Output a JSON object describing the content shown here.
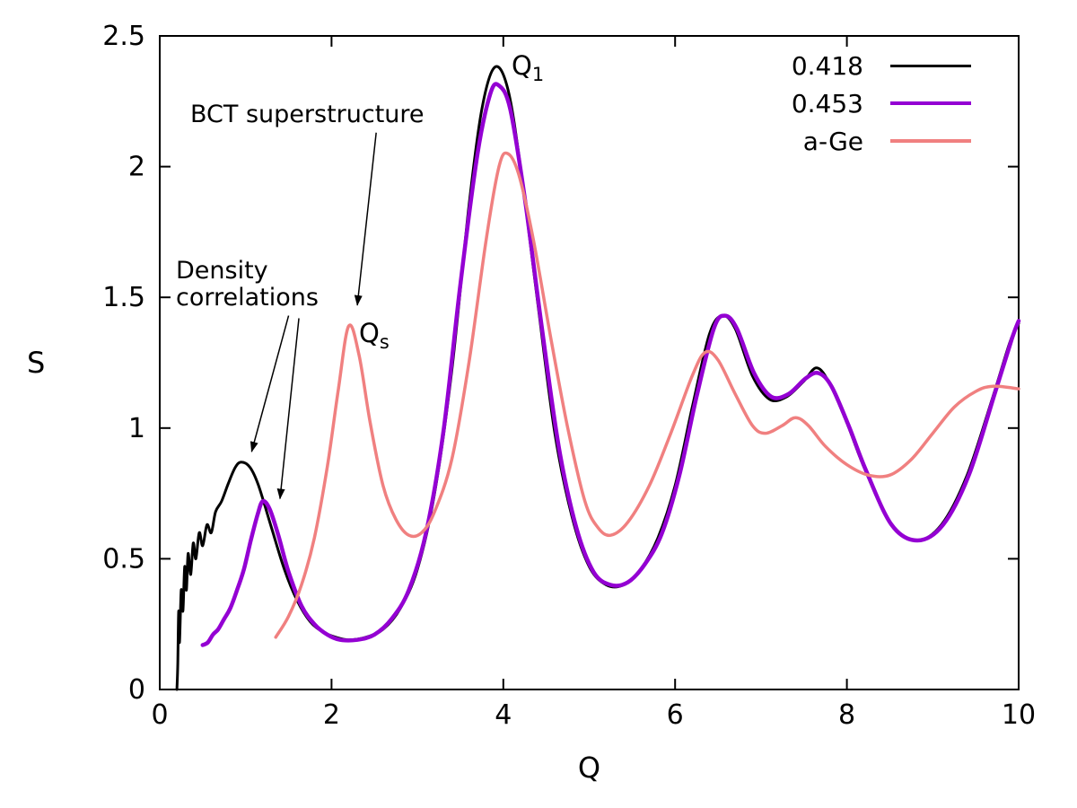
{
  "page": {
    "background": "#ffffff"
  },
  "chart_data": {
    "type": "line",
    "title": "",
    "xlabel": "Q",
    "ylabel": "S",
    "xlim": [
      0,
      10
    ],
    "ylim": [
      0,
      2.5
    ],
    "x_ticks": [
      0,
      2,
      4,
      6,
      8,
      10
    ],
    "x_tick_labels": [
      "0",
      "2",
      "4",
      "6",
      "8",
      "10"
    ],
    "y_ticks": [
      0,
      0.5,
      1,
      1.5,
      2,
      2.5
    ],
    "y_tick_labels": [
      "0",
      "0.5",
      "1",
      "1.5",
      "2",
      "2.5"
    ],
    "grid": false,
    "legend_position": "top-right-inside",
    "axis_color": "#000000",
    "series": [
      {
        "name": "0.418",
        "color": "#000000",
        "width": 3,
        "points": [
          [
            0.2,
            0.0
          ],
          [
            0.21,
            0.1
          ],
          [
            0.22,
            0.3
          ],
          [
            0.23,
            0.18
          ],
          [
            0.25,
            0.38
          ],
          [
            0.27,
            0.3
          ],
          [
            0.29,
            0.47
          ],
          [
            0.31,
            0.38
          ],
          [
            0.33,
            0.52
          ],
          [
            0.36,
            0.44
          ],
          [
            0.39,
            0.56
          ],
          [
            0.42,
            0.5
          ],
          [
            0.46,
            0.6
          ],
          [
            0.5,
            0.55
          ],
          [
            0.55,
            0.63
          ],
          [
            0.6,
            0.6
          ],
          [
            0.65,
            0.68
          ],
          [
            0.72,
            0.72
          ],
          [
            0.8,
            0.79
          ],
          [
            0.88,
            0.85
          ],
          [
            0.95,
            0.87
          ],
          [
            1.05,
            0.85
          ],
          [
            1.15,
            0.78
          ],
          [
            1.3,
            0.62
          ],
          [
            1.45,
            0.46
          ],
          [
            1.6,
            0.34
          ],
          [
            1.75,
            0.26
          ],
          [
            1.9,
            0.22
          ],
          [
            2.05,
            0.2
          ],
          [
            2.2,
            0.19
          ],
          [
            2.4,
            0.2
          ],
          [
            2.6,
            0.23
          ],
          [
            2.8,
            0.31
          ],
          [
            3.0,
            0.46
          ],
          [
            3.2,
            0.75
          ],
          [
            3.4,
            1.22
          ],
          [
            3.6,
            1.85
          ],
          [
            3.75,
            2.22
          ],
          [
            3.9,
            2.38
          ],
          [
            4.05,
            2.3
          ],
          [
            4.2,
            2.0
          ],
          [
            4.4,
            1.48
          ],
          [
            4.6,
            0.98
          ],
          [
            4.8,
            0.66
          ],
          [
            5.0,
            0.47
          ],
          [
            5.2,
            0.4
          ],
          [
            5.4,
            0.4
          ],
          [
            5.6,
            0.46
          ],
          [
            5.8,
            0.58
          ],
          [
            6.0,
            0.78
          ],
          [
            6.2,
            1.08
          ],
          [
            6.4,
            1.36
          ],
          [
            6.55,
            1.43
          ],
          [
            6.7,
            1.38
          ],
          [
            6.9,
            1.2
          ],
          [
            7.1,
            1.11
          ],
          [
            7.3,
            1.12
          ],
          [
            7.5,
            1.18
          ],
          [
            7.65,
            1.23
          ],
          [
            7.8,
            1.17
          ],
          [
            8.0,
            1.02
          ],
          [
            8.2,
            0.85
          ],
          [
            8.5,
            0.64
          ],
          [
            8.8,
            0.57
          ],
          [
            9.1,
            0.63
          ],
          [
            9.4,
            0.82
          ],
          [
            9.7,
            1.12
          ],
          [
            9.9,
            1.33
          ],
          [
            10.0,
            1.4
          ]
        ]
      },
      {
        "name": "0.453",
        "color": "#9400d3",
        "width": 4.5,
        "points": [
          [
            0.5,
            0.17
          ],
          [
            0.56,
            0.18
          ],
          [
            0.62,
            0.21
          ],
          [
            0.68,
            0.23
          ],
          [
            0.75,
            0.27
          ],
          [
            0.82,
            0.31
          ],
          [
            0.9,
            0.38
          ],
          [
            0.98,
            0.46
          ],
          [
            1.06,
            0.57
          ],
          [
            1.14,
            0.67
          ],
          [
            1.2,
            0.72
          ],
          [
            1.28,
            0.69
          ],
          [
            1.38,
            0.59
          ],
          [
            1.5,
            0.45
          ],
          [
            1.65,
            0.32
          ],
          [
            1.8,
            0.25
          ],
          [
            1.95,
            0.21
          ],
          [
            2.1,
            0.19
          ],
          [
            2.3,
            0.19
          ],
          [
            2.5,
            0.21
          ],
          [
            2.7,
            0.27
          ],
          [
            2.9,
            0.38
          ],
          [
            3.1,
            0.6
          ],
          [
            3.3,
            0.98
          ],
          [
            3.5,
            1.55
          ],
          [
            3.7,
            2.05
          ],
          [
            3.85,
            2.28
          ],
          [
            3.95,
            2.31
          ],
          [
            4.08,
            2.22
          ],
          [
            4.25,
            1.88
          ],
          [
            4.45,
            1.38
          ],
          [
            4.65,
            0.92
          ],
          [
            4.85,
            0.62
          ],
          [
            5.05,
            0.45
          ],
          [
            5.25,
            0.4
          ],
          [
            5.45,
            0.41
          ],
          [
            5.65,
            0.48
          ],
          [
            5.85,
            0.6
          ],
          [
            6.05,
            0.82
          ],
          [
            6.25,
            1.12
          ],
          [
            6.45,
            1.38
          ],
          [
            6.58,
            1.43
          ],
          [
            6.72,
            1.38
          ],
          [
            6.92,
            1.21
          ],
          [
            7.12,
            1.12
          ],
          [
            7.32,
            1.13
          ],
          [
            7.52,
            1.19
          ],
          [
            7.67,
            1.21
          ],
          [
            7.82,
            1.16
          ],
          [
            8.02,
            1.01
          ],
          [
            8.22,
            0.84
          ],
          [
            8.52,
            0.63
          ],
          [
            8.82,
            0.57
          ],
          [
            9.12,
            0.63
          ],
          [
            9.42,
            0.82
          ],
          [
            9.72,
            1.13
          ],
          [
            9.92,
            1.34
          ],
          [
            10.0,
            1.41
          ]
        ]
      },
      {
        "name": "a-Ge",
        "color": "#f08080",
        "width": 3.5,
        "points": [
          [
            1.35,
            0.2
          ],
          [
            1.5,
            0.28
          ],
          [
            1.65,
            0.4
          ],
          [
            1.8,
            0.58
          ],
          [
            1.95,
            0.85
          ],
          [
            2.08,
            1.15
          ],
          [
            2.2,
            1.39
          ],
          [
            2.32,
            1.28
          ],
          [
            2.45,
            1.02
          ],
          [
            2.6,
            0.78
          ],
          [
            2.75,
            0.65
          ],
          [
            2.9,
            0.59
          ],
          [
            3.05,
            0.6
          ],
          [
            3.2,
            0.68
          ],
          [
            3.4,
            0.88
          ],
          [
            3.6,
            1.25
          ],
          [
            3.8,
            1.72
          ],
          [
            3.95,
            2.0
          ],
          [
            4.05,
            2.05
          ],
          [
            4.18,
            1.97
          ],
          [
            4.35,
            1.72
          ],
          [
            4.55,
            1.35
          ],
          [
            4.75,
            1.0
          ],
          [
            4.95,
            0.72
          ],
          [
            5.1,
            0.62
          ],
          [
            5.25,
            0.59
          ],
          [
            5.45,
            0.64
          ],
          [
            5.7,
            0.78
          ],
          [
            5.95,
            0.98
          ],
          [
            6.2,
            1.2
          ],
          [
            6.35,
            1.29
          ],
          [
            6.5,
            1.26
          ],
          [
            6.7,
            1.13
          ],
          [
            6.9,
            1.01
          ],
          [
            7.05,
            0.98
          ],
          [
            7.25,
            1.01
          ],
          [
            7.4,
            1.04
          ],
          [
            7.55,
            1.01
          ],
          [
            7.75,
            0.93
          ],
          [
            8.0,
            0.86
          ],
          [
            8.25,
            0.82
          ],
          [
            8.5,
            0.82
          ],
          [
            8.75,
            0.88
          ],
          [
            9.0,
            0.98
          ],
          [
            9.25,
            1.08
          ],
          [
            9.5,
            1.14
          ],
          [
            9.7,
            1.16
          ],
          [
            10.0,
            1.15
          ]
        ]
      }
    ],
    "annotations": {
      "bct": "BCT superstructure",
      "density_line1": "Density",
      "density_line2": "correlations",
      "q1_main": "Q",
      "q1_sub": "1",
      "qs_main": "Q",
      "qs_sub": "s"
    },
    "arrows": [
      {
        "from": [
          2.52,
          2.13
        ],
        "to": [
          2.3,
          1.47
        ]
      },
      {
        "from": [
          1.5,
          1.43
        ],
        "to": [
          1.07,
          0.91
        ]
      },
      {
        "from": [
          1.62,
          1.42
        ],
        "to": [
          1.4,
          0.73
        ]
      }
    ]
  }
}
